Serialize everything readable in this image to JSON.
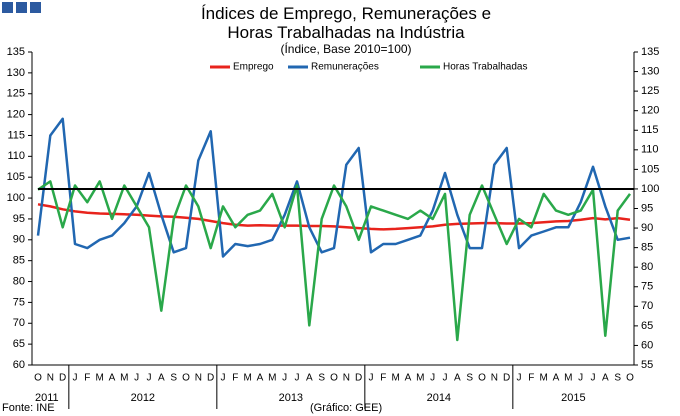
{
  "chart_data": {
    "type": "line",
    "title": "Índices de Emprego, Remunerações e Horas Trabalhadas na Indústria",
    "subtitle": "(Índice, Base 2010=100)",
    "categories": [
      "O",
      "N",
      "D",
      "J",
      "F",
      "M",
      "A",
      "M",
      "J",
      "J",
      "A",
      "S",
      "O",
      "N",
      "D",
      "J",
      "F",
      "M",
      "A",
      "M",
      "J",
      "J",
      "A",
      "S",
      "O",
      "N",
      "D",
      "J",
      "F",
      "M",
      "A",
      "M",
      "J",
      "J",
      "A",
      "S",
      "O",
      "N",
      "D",
      "J",
      "F",
      "M",
      "A",
      "M",
      "J",
      "J",
      "A",
      "S",
      "O"
    ],
    "years": [
      {
        "label": "2011",
        "start": 0,
        "end": 2
      },
      {
        "label": "2012",
        "start": 3,
        "end": 14
      },
      {
        "label": "2013",
        "start": 15,
        "end": 26
      },
      {
        "label": "2014",
        "start": 27,
        "end": 38
      },
      {
        "label": "2015",
        "start": 39,
        "end": 48
      }
    ],
    "series": [
      {
        "name": "Emprego",
        "color": "#e8231c",
        "values": [
          98.5,
          98,
          97.3,
          96.8,
          96.5,
          96.3,
          96.2,
          96.1,
          96,
          95.8,
          95.6,
          95.5,
          95.3,
          95,
          94.5,
          94,
          93.6,
          93.4,
          93.5,
          93.4,
          93.4,
          93.4,
          93.3,
          93.3,
          93.2,
          93,
          92.8,
          92.6,
          92.5,
          92.6,
          92.8,
          93,
          93.2,
          93.6,
          93.8,
          93.9,
          94,
          94,
          93.9,
          93.9,
          94,
          94.2,
          94.4,
          94.5,
          94.8,
          95.2,
          94.9,
          95.2,
          94.8
        ]
      },
      {
        "name": "Remunerações",
        "color": "#2167b1",
        "values": [
          91,
          115,
          119,
          89,
          88,
          90,
          91,
          94,
          98,
          106,
          96,
          87,
          88,
          109,
          116,
          86,
          89,
          88.5,
          89,
          90,
          96,
          104,
          93,
          87,
          88,
          108,
          112,
          87,
          89,
          89,
          90,
          91,
          97,
          106,
          96,
          88,
          88,
          108,
          112,
          88,
          91,
          92,
          93,
          93,
          99,
          107.5,
          98,
          90,
          90.5
        ]
      },
      {
        "name": "Horas Trabalhadas",
        "color": "#2aa84a",
        "values": [
          102,
          104,
          93,
          103,
          99,
          104,
          95,
          103,
          98,
          93,
          73,
          95,
          103,
          98,
          88,
          98,
          93,
          96,
          97,
          101,
          93,
          103,
          69.5,
          95,
          103,
          98,
          90,
          98,
          97,
          96,
          95,
          97,
          95,
          101,
          66,
          96,
          103,
          96,
          89,
          95,
          93,
          101,
          97,
          96,
          97,
          102,
          67,
          97,
          101
        ]
      }
    ],
    "reference_line": {
      "value": 100,
      "axis": "y2",
      "color": "#000000"
    },
    "ylim": [
      60,
      135
    ],
    "yticks": [
      60,
      65,
      70,
      75,
      80,
      85,
      90,
      95,
      100,
      105,
      110,
      115,
      120,
      125,
      130,
      135
    ],
    "y2lim": [
      55,
      135
    ],
    "y2ticks": [
      55,
      60,
      65,
      70,
      75,
      80,
      85,
      90,
      95,
      100,
      105,
      110,
      115,
      120,
      125,
      130,
      135
    ],
    "legend": "top",
    "source": "Fonte: INE",
    "credit": "(Gráfico: GEE)"
  }
}
